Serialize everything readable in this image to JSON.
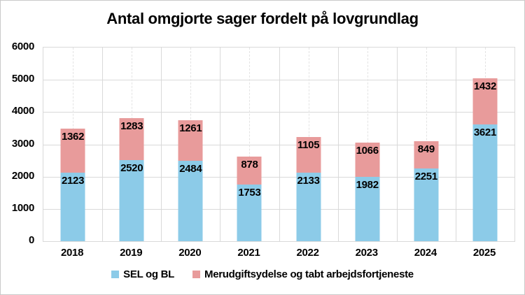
{
  "title": "Antal omgjorte sager fordelt på lovgrundlag",
  "chart_data": {
    "type": "bar",
    "stacked": true,
    "title": "Antal omgjorte sager fordelt på lovgrundlag",
    "categories": [
      "2018",
      "2019",
      "2020",
      "2021",
      "2022",
      "2023",
      "2024",
      "2025"
    ],
    "series": [
      {
        "name": "SEL og BL",
        "color": "#8ccbe8",
        "values": [
          2123,
          2520,
          2484,
          1753,
          2133,
          1982,
          2251,
          3621
        ]
      },
      {
        "name": "Merudgiftsydelse og tabt arbejdsfortjeneste",
        "color": "#e89b9b",
        "values": [
          1362,
          1283,
          1261,
          878,
          1105,
          1066,
          849,
          1432
        ]
      }
    ],
    "totals": [
      3485,
      3803,
      3745,
      2631,
      3238,
      3048,
      3100,
      5053
    ],
    "ylim": [
      0,
      6000
    ],
    "ytick_step": 1000,
    "ytick_labels": [
      "0",
      "1000",
      "2000",
      "3000",
      "4000",
      "5000",
      "6000"
    ],
    "data_labels": "inside-top-of-segment, bold black",
    "grid": "horizontal major lines every 1000; vertical lines at category boundaries (solid) and midpoints (dashed)",
    "legend_position": "bottom-center",
    "colors": {
      "grid_major": "#d9d9d9",
      "grid_minor": "#e3e3e3",
      "plot_border": "#d9d9d9",
      "outer_border": "#c9c9c9",
      "text": "#000000",
      "background": "#ffffff"
    }
  }
}
